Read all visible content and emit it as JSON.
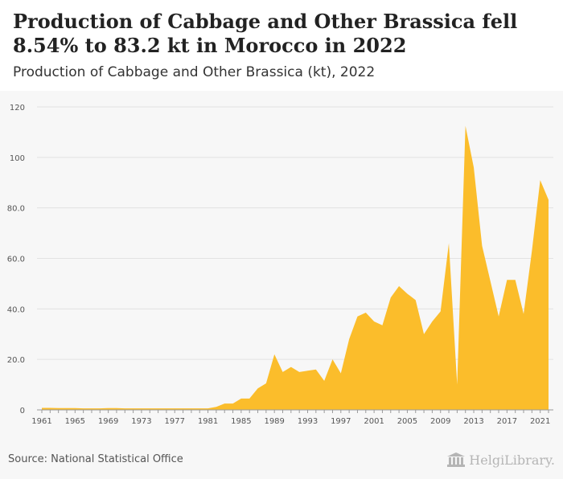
{
  "header": {
    "title": "Production of Cabbage and Other Brassica fell 8.54% to 83.2 kt in Morocco in 2022",
    "subtitle": "Production of Cabbage and Other Brassica (kt), 2022"
  },
  "footer": {
    "source": "Source: National Statistical Office",
    "brand": "HelgiLibrary."
  },
  "chart_data": {
    "type": "area",
    "color": "#fbbd2b",
    "x": [
      1961,
      1962,
      1963,
      1964,
      1965,
      1966,
      1967,
      1968,
      1969,
      1970,
      1971,
      1972,
      1973,
      1974,
      1975,
      1976,
      1977,
      1978,
      1979,
      1980,
      1981,
      1982,
      1983,
      1984,
      1985,
      1986,
      1987,
      1988,
      1989,
      1990,
      1991,
      1992,
      1993,
      1994,
      1995,
      1996,
      1997,
      1998,
      1999,
      2000,
      2001,
      2002,
      2003,
      2004,
      2005,
      2006,
      2007,
      2008,
      2009,
      2010,
      2011,
      2012,
      2013,
      2014,
      2015,
      2016,
      2017,
      2018,
      2019,
      2020,
      2021,
      2022
    ],
    "values": [
      0.8,
      0.8,
      0.7,
      0.7,
      0.7,
      0.6,
      0.6,
      0.6,
      0.7,
      0.7,
      0.6,
      0.6,
      0.6,
      0.6,
      0.6,
      0.6,
      0.6,
      0.6,
      0.6,
      0.6,
      0.6,
      1.2,
      2.5,
      2.5,
      4.5,
      4.5,
      8.5,
      10.5,
      22.0,
      15.0,
      17.0,
      15.0,
      15.5,
      16.0,
      11.5,
      20.0,
      14.5,
      28.0,
      37.0,
      38.5,
      35.0,
      33.5,
      44.5,
      49.0,
      46.0,
      43.5,
      30.0,
      35.0,
      39.0,
      66.0,
      10.0,
      112.5,
      96.0,
      65.0,
      51.0,
      37.0,
      51.5,
      51.5,
      38.0,
      63.0,
      91.0,
      83.2
    ],
    "xticks": [
      "1961",
      "1965",
      "1969",
      "1973",
      "1977",
      "1981",
      "1985",
      "1989",
      "1993",
      "1997",
      "2001",
      "2005",
      "2009",
      "2013",
      "2017",
      "2021"
    ],
    "yticks": [
      "0",
      "20.0",
      "40.0",
      "60.0",
      "80.0",
      "100",
      "120"
    ],
    "ylim": [
      0,
      120
    ],
    "grid": "horizontal"
  }
}
